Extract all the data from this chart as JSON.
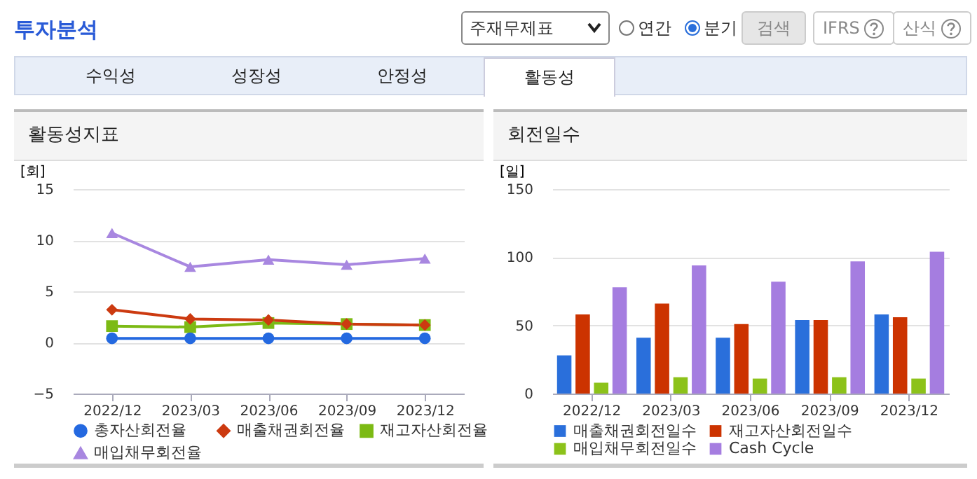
{
  "chart_data": [
    {
      "type": "other",
      "title": "투자분석",
      "annotations": [
        "주재무제표",
        "연간",
        "분기",
        "검색",
        "IFRS",
        "산식",
        "수익성",
        "성장성",
        "안정성",
        "활동성"
      ]
    },
    {
      "type": "line",
      "title": "활동성지표",
      "ylabel": "[회]",
      "categories": [
        "2022/12",
        "2023/03",
        "2023/06",
        "2023/09",
        "2023/12"
      ],
      "series": [
        {
          "name": "총자산회전율",
          "color": "#2469e0",
          "marker": "circle",
          "values": [
            0.4,
            0.4,
            0.4,
            0.4,
            0.4
          ]
        },
        {
          "name": "매출채권회전율",
          "color": "#cc3a10",
          "marker": "diamond",
          "values": [
            3.2,
            2.3,
            2.2,
            1.8,
            1.7
          ]
        },
        {
          "name": "재고자산회전율",
          "color": "#7cba14",
          "marker": "square",
          "values": [
            1.6,
            1.5,
            1.9,
            1.8,
            1.7
          ]
        },
        {
          "name": "매입채무회전율",
          "color": "#a887e0",
          "marker": "triangle",
          "values": [
            10.7,
            7.4,
            8.1,
            7.6,
            8.2
          ]
        }
      ],
      "ylim": [
        -5,
        15
      ],
      "yticks": [
        -5,
        0,
        5,
        10,
        15
      ],
      "grid": "y",
      "legend": "bottom"
    },
    {
      "type": "bar",
      "title": "회전일수",
      "ylabel": "[일]",
      "categories": [
        "2022/12",
        "2023/03",
        "2023/06",
        "2023/09",
        "2023/12"
      ],
      "series": [
        {
          "name": "매출채권회전일수",
          "color": "#2a6fdb",
          "values": [
            28,
            41,
            41,
            54,
            58
          ]
        },
        {
          "name": "재고자산회전일수",
          "color": "#cc3300",
          "values": [
            58,
            66,
            51,
            54,
            56
          ]
        },
        {
          "name": "매입채무회전일수",
          "color": "#8cc21a",
          "values": [
            8,
            12,
            11,
            12,
            11
          ]
        },
        {
          "name": "Cash Cycle",
          "color": "#a57de0",
          "values": [
            78,
            94,
            82,
            97,
            104
          ]
        }
      ],
      "ylim": [
        0,
        150
      ],
      "yticks": [
        0,
        50,
        100,
        150
      ],
      "grid": "y",
      "legend": "bottom"
    }
  ]
}
